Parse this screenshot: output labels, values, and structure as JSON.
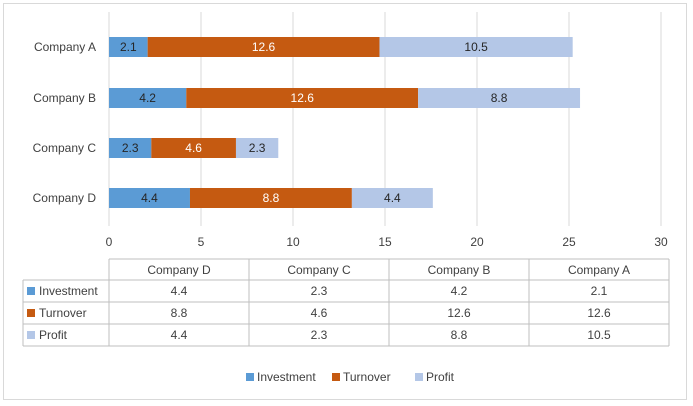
{
  "chart_data": {
    "type": "bar",
    "orientation": "horizontal",
    "stacked": true,
    "categories": [
      "Company A",
      "Company B",
      "Company C",
      "Company D"
    ],
    "table_categories": [
      "Company D",
      "Company C",
      "Company B",
      "Company A"
    ],
    "series": [
      {
        "name": "Investment",
        "values": [
          2.1,
          4.2,
          2.3,
          4.4
        ],
        "color": "#5b9bd5"
      },
      {
        "name": "Turnover",
        "values": [
          12.6,
          12.6,
          4.6,
          8.8
        ],
        "color": "#c55a11"
      },
      {
        "name": "Profit",
        "values": [
          10.5,
          8.8,
          2.3,
          4.4
        ],
        "color": "#b4c7e7"
      }
    ],
    "xlim": [
      0,
      30
    ],
    "xticks": [
      0,
      5,
      10,
      15,
      20,
      25,
      30
    ],
    "grid": true,
    "legend": "bottom",
    "data_table": true
  }
}
